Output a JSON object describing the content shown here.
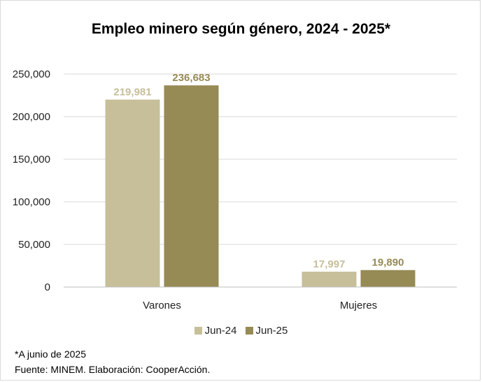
{
  "chart_data": {
    "type": "bar",
    "title": "Empleo minero según género, 2024 - 2025*",
    "categories": [
      "Varones",
      "Mujeres"
    ],
    "series": [
      {
        "name": "Jun-24",
        "values": [
          219981,
          17997
        ],
        "labels": [
          "219,981",
          "17,997"
        ],
        "color": "#c6bf99"
      },
      {
        "name": "Jun-25",
        "values": [
          236683,
          19890
        ],
        "labels": [
          "236,683",
          "19,890"
        ],
        "color": "#968a55"
      }
    ],
    "ylim": [
      0,
      250000
    ],
    "yticks": [
      0,
      50000,
      100000,
      150000,
      200000,
      250000
    ],
    "ytick_labels": [
      "0",
      "50,000",
      "100,000",
      "150,000",
      "200,000",
      "250,000"
    ],
    "grid": true,
    "legend": "bottom"
  },
  "notes": {
    "footnote": "*A junio de 2025",
    "source": "Fuente: MINEM. Elaboración: CooperAcción."
  }
}
